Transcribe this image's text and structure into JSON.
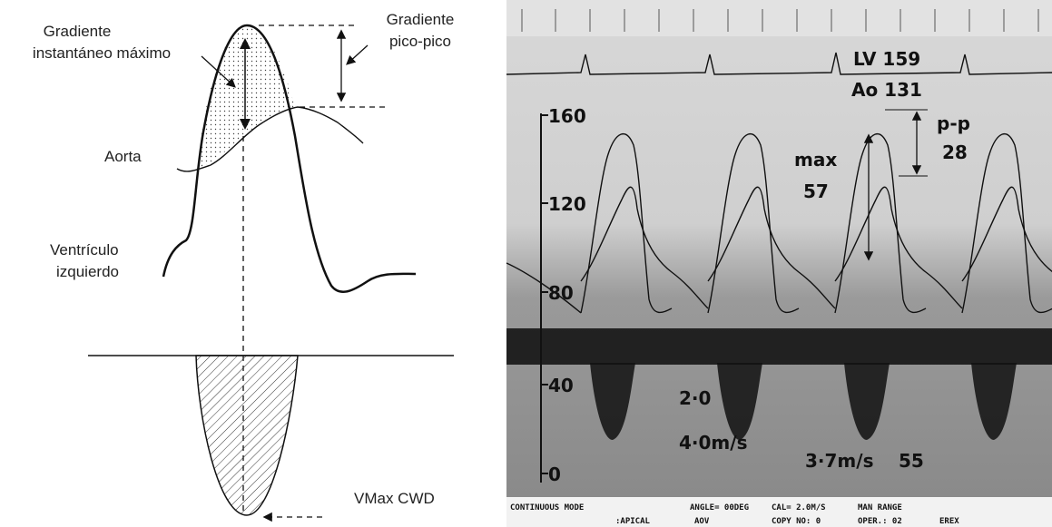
{
  "left": {
    "max_gradient": {
      "line1": "Gradiente",
      "line2": "instantáneo máximo"
    },
    "peak_to_peak": {
      "line1": "Gradiente",
      "line2": "pico-pico"
    },
    "aorta": "Aorta",
    "lv": {
      "line1": "Ventrículo",
      "line2": "izquierdo"
    },
    "vmax": "VMax CWD"
  },
  "right": {
    "lv_pressure": "LV 159",
    "ao_pressure": "Ao 131",
    "scale": [
      "160",
      "120",
      "80",
      "40",
      "0"
    ],
    "max_label": "max",
    "max_value": "57",
    "pp_label": "p-p",
    "pp_value": "28",
    "velocity_labels": [
      "2·0",
      "4·0m/s",
      "3·7m/s",
      "55"
    ],
    "footer_row1": [
      "CONTINUOUS MODE",
      "ANGLE= 00DEG",
      "CAL= 2.0M/S",
      "MAN RANGE"
    ],
    "footer_row2": [
      ":APICAL",
      "AOV",
      "COPY NO: 0",
      "OPER.: 02",
      "EREX"
    ]
  }
}
